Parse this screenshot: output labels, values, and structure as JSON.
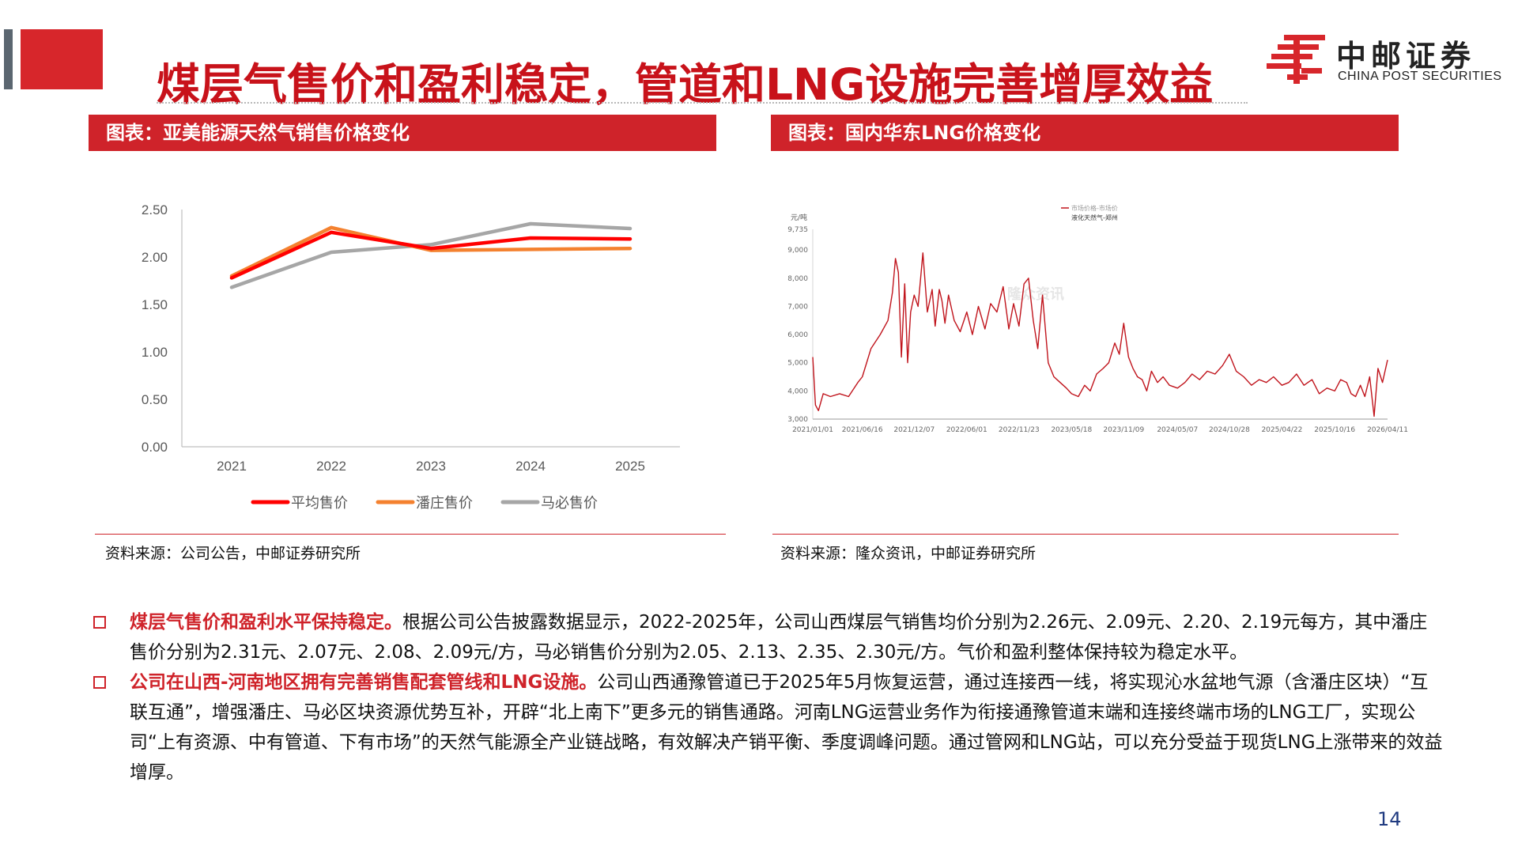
{
  "header": {
    "title": "煤层气售价和盈利稳定，管道和LNG设施完善增厚效益",
    "logo_cn": "中邮证券",
    "logo_en": "CHINA POST SECURITIES",
    "accent_color": "#d7262b"
  },
  "left_panel": {
    "header": "图表：亚美能源天然气销售价格变化",
    "source": "资料来源：公司公告，中邮证券研究所"
  },
  "right_panel": {
    "header": "图表：国内华东LNG价格变化",
    "source": "资料来源：隆众资讯，中邮证券研究所"
  },
  "chart_data": [
    {
      "type": "line",
      "x": [
        "2021",
        "2022",
        "2023",
        "2024",
        "2025"
      ],
      "yticks": [
        "0.00",
        "0.50",
        "1.00",
        "1.50",
        "2.00",
        "2.50"
      ],
      "ylim": [
        0,
        2.5
      ],
      "grid": false,
      "legend_position": "bottom",
      "series": [
        {
          "name": "平均售价",
          "color": "#ff0000",
          "values": [
            1.78,
            2.26,
            2.09,
            2.2,
            2.19
          ]
        },
        {
          "name": "潘庄售价",
          "color": "#f4812f",
          "values": [
            1.8,
            2.31,
            2.07,
            2.08,
            2.09
          ]
        },
        {
          "name": "马必售价",
          "color": "#a6a6a6",
          "values": [
            1.68,
            2.05,
            2.13,
            2.35,
            2.3
          ]
        }
      ]
    },
    {
      "type": "line",
      "unit": "元/吨",
      "legend_title": "市场价格-市场价",
      "legend_series": "液化天然气-郑州",
      "watermark": "隆众资讯",
      "ylim": [
        3000,
        9735
      ],
      "yticks": [
        "3,000",
        "4,000",
        "5,000",
        "6,000",
        "7,000",
        "8,000",
        "9,000",
        "9,735"
      ],
      "xticks": [
        "2021/01/01",
        "2021/06/16",
        "2021/12/07",
        "2022/06/01",
        "2022/11/23",
        "2023/05/18",
        "2023/11/09",
        "2024/05/07",
        "2024/10/28",
        "2025/04/22",
        "2025/10/16",
        "2026/04/11"
      ],
      "series": [
        {
          "name": "液化天然气-郑州",
          "color": "#c0141c",
          "x": [
            "2021/01/01",
            "2021/01/10",
            "2021/01/20",
            "2021/02/05",
            "2021/03/01",
            "2021/04/01",
            "2021/05/01",
            "2021/06/01",
            "2021/06/16",
            "2021/07/15",
            "2021/08/15",
            "2021/09/10",
            "2021/09/25",
            "2021/10/05",
            "2021/10/15",
            "2021/10/25",
            "2021/11/05",
            "2021/11/15",
            "2021/11/25",
            "2021/12/07",
            "2021/12/20",
            "2022/01/05",
            "2022/01/20",
            "2022/02/05",
            "2022/02/15",
            "2022/03/01",
            "2022/03/10",
            "2022/03/20",
            "2022/04/01",
            "2022/04/20",
            "2022/05/10",
            "2022/06/01",
            "2022/06/20",
            "2022/07/10",
            "2022/08/01",
            "2022/08/20",
            "2022/09/10",
            "2022/10/01",
            "2022/10/20",
            "2022/11/05",
            "2022/11/23",
            "2022/12/10",
            "2022/12/25",
            "2023/01/10",
            "2023/01/25",
            "2023/02/10",
            "2023/03/01",
            "2023/03/20",
            "2023/04/10",
            "2023/05/01",
            "2023/05/18",
            "2023/06/10",
            "2023/07/01",
            "2023/07/20",
            "2023/08/10",
            "2023/09/01",
            "2023/09/20",
            "2023/10/10",
            "2023/10/25",
            "2023/11/09",
            "2023/11/25",
            "2023/12/10",
            "2023/12/25",
            "2024/01/10",
            "2024/01/25",
            "2024/02/10",
            "2024/03/01",
            "2024/03/20",
            "2024/04/10",
            "2024/05/07",
            "2024/06/01",
            "2024/06/25",
            "2024/07/20",
            "2024/08/15",
            "2024/09/10",
            "2024/10/05",
            "2024/10/28",
            "2024/11/20",
            "2024/12/15",
            "2025/01/10",
            "2025/02/05",
            "2025/03/01",
            "2025/03/25",
            "2025/04/22",
            "2025/05/15",
            "2025/06/10",
            "2025/07/05",
            "2025/08/01",
            "2025/08/25",
            "2025/09/20",
            "2025/10/16",
            "2025/11/05",
            "2025/11/25",
            "2025/12/10",
            "2025/12/25",
            "2026/01/10",
            "2026/01/25",
            "2026/02/10",
            "2026/02/25",
            "2026/03/10",
            "2026/03/25",
            "2026/04/11"
          ],
          "values": [
            5200,
            3500,
            3300,
            3900,
            3800,
            3900,
            3800,
            4300,
            4500,
            5500,
            6000,
            6500,
            7500,
            8700,
            8200,
            5200,
            7800,
            5000,
            6800,
            7400,
            7000,
            8900,
            6800,
            7600,
            6300,
            7600,
            7200,
            6400,
            7400,
            6500,
            6100,
            6800,
            6000,
            7000,
            6200,
            7100,
            6800,
            7700,
            6200,
            7100,
            6300,
            7800,
            8000,
            6500,
            5500,
            7400,
            5000,
            4500,
            4300,
            4100,
            3900,
            3800,
            4200,
            4000,
            4600,
            4800,
            5000,
            5700,
            5300,
            6400,
            5200,
            4800,
            4500,
            4400,
            4000,
            4700,
            4300,
            4500,
            4200,
            4100,
            4300,
            4600,
            4400,
            4700,
            4600,
            4900,
            5300,
            4700,
            4500,
            4200,
            4400,
            4300,
            4500,
            4200,
            4300,
            4600,
            4200,
            4400,
            3900,
            4100,
            4000,
            4400,
            4300,
            3900,
            3800,
            4200,
            3800,
            4500,
            3100,
            4800,
            4300,
            5100
          ]
        }
      ]
    }
  ],
  "bullets": [
    {
      "lead": "煤层气售价和盈利水平保持稳定。",
      "text": "根据公司公告披露数据显示，2022-2025年，公司山西煤层气销售均价分别为2.26元、2.09元、2.20、2.19元每方，其中潘庄售价分别为2.31元、2.07元、2.08、2.09元/方，马必销售价分别为2.05、2.13、2.35、2.30元/方。气价和盈利整体保持较为稳定水平。"
    },
    {
      "lead": "公司在山西-河南地区拥有完善销售配套管线和LNG设施。",
      "text": "公司山西通豫管道已于2025年5月恢复运营，通过连接西一线，将实现沁水盆地气源（含潘庄区块）“互联互通”，增强潘庄、马必区块资源优势互补，开辟“北上南下”更多元的销售通路。河南LNG运营业务作为衔接通豫管道末端和连接终端市场的LNG工厂，实现公司“上有资源、中有管道、下有市场”的天然气能源全产业链战略，有效解决产销平衡、季度调峰问题。通过管网和LNG站，可以充分受益于现货LNG上涨带来的效益增厚。"
    }
  ],
  "page_number": "14"
}
